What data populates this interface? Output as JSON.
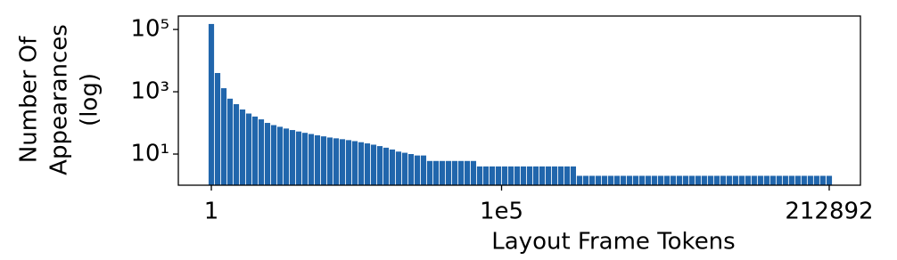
{
  "chart_data": {
    "type": "bar",
    "xlabel": "Layout Frame Tokens",
    "ylabel": [
      "Number Of",
      "Appearances",
      "(log)"
    ],
    "color": "#2166ac",
    "ylog": true,
    "xlim": [
      -11370,
      223650
    ],
    "ylim": [
      1,
      270000
    ],
    "xticks": [
      1,
      {
        "value": 100000,
        "label": "1e5"
      },
      212892
    ],
    "yticks": [
      {
        "value": 10,
        "label": "10¹"
      },
      {
        "value": 1000,
        "label": "10³"
      },
      {
        "value": 100000,
        "label": "10⁵"
      }
    ],
    "x": [
      1,
      2151,
      4301,
      6451,
      8601,
      10751,
      12901,
      15051,
      17201,
      19351,
      21501,
      23651,
      25801,
      27951,
      30101,
      32251,
      34401,
      36551,
      38701,
      40851,
      43001,
      45151,
      47301,
      49451,
      51601,
      53751,
      55901,
      58051,
      60201,
      62351,
      64501,
      66651,
      68801,
      70951,
      73101,
      75251,
      77401,
      79551,
      81701,
      83851,
      86001,
      88151,
      90301,
      92451,
      94601,
      96751,
      98901,
      101051,
      103201,
      105351,
      107501,
      109651,
      111801,
      113951,
      116101,
      118251,
      120401,
      122551,
      124701,
      126851,
      129001,
      131151,
      133301,
      135451,
      137601,
      139751,
      141901,
      144051,
      146201,
      148351,
      150501,
      152651,
      154801,
      156951,
      159101,
      161251,
      163401,
      165551,
      167701,
      169851,
      172001,
      174151,
      176301,
      178451,
      180601,
      182751,
      184901,
      187051,
      189201,
      191351,
      193501,
      195651,
      197801,
      199951,
      202101,
      204251,
      206401,
      208551,
      210701,
      212892
    ],
    "values": [
      150000,
      4000,
      1300,
      600,
      400,
      270,
      200,
      160,
      130,
      100,
      85,
      75,
      66,
      59,
      53,
      48,
      44,
      40,
      37,
      34,
      32,
      30,
      28,
      26,
      24,
      22,
      20,
      18,
      16,
      14,
      12,
      11,
      10,
      9,
      9,
      6,
      6,
      6,
      6,
      6,
      6,
      6,
      6,
      4,
      4,
      4,
      4,
      4,
      4,
      4,
      4,
      4,
      4,
      4,
      4,
      4,
      4,
      4,
      4,
      2,
      2,
      2,
      2,
      2,
      2,
      2,
      2,
      2,
      2,
      2,
      2,
      2,
      2,
      2,
      2,
      2,
      2,
      2,
      2,
      2,
      2,
      2,
      2,
      2,
      2,
      2,
      2,
      2,
      2,
      2,
      2,
      2,
      2,
      2,
      2,
      2,
      2,
      2,
      2,
      2
    ]
  }
}
